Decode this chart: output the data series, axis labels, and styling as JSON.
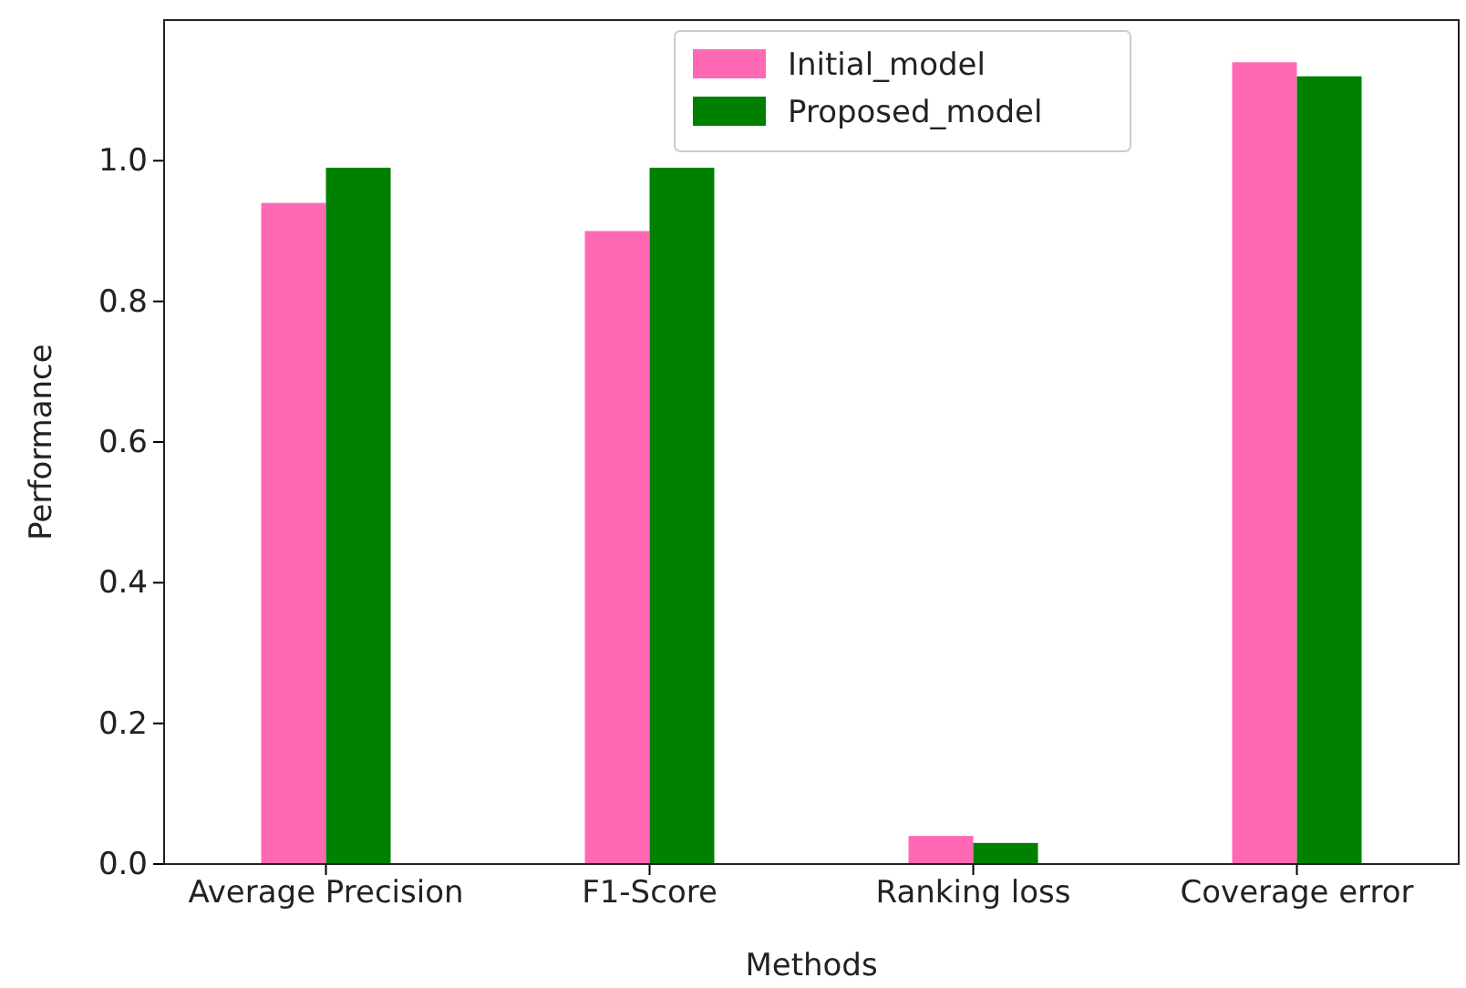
{
  "chart_data": {
    "type": "bar",
    "xlabel": "Methods",
    "ylabel": "Performance",
    "categories": [
      "Average Precision",
      "F1-Score",
      "Ranking loss",
      "Coverage error"
    ],
    "series": [
      {
        "name": "Initial_model",
        "color": "#ff69b4",
        "values": [
          0.94,
          0.9,
          0.04,
          1.14
        ]
      },
      {
        "name": "Proposed_model",
        "color": "#008000",
        "values": [
          0.99,
          0.99,
          0.03,
          1.12
        ]
      }
    ],
    "ylim": [
      0,
      1.2
    ],
    "yticks": [
      {
        "value": 0,
        "label": "0.0"
      },
      0.2,
      0.4,
      0.6,
      0.8,
      {
        "value": 1,
        "label": "1.0"
      }
    ],
    "grid": false,
    "legend": "top"
  }
}
